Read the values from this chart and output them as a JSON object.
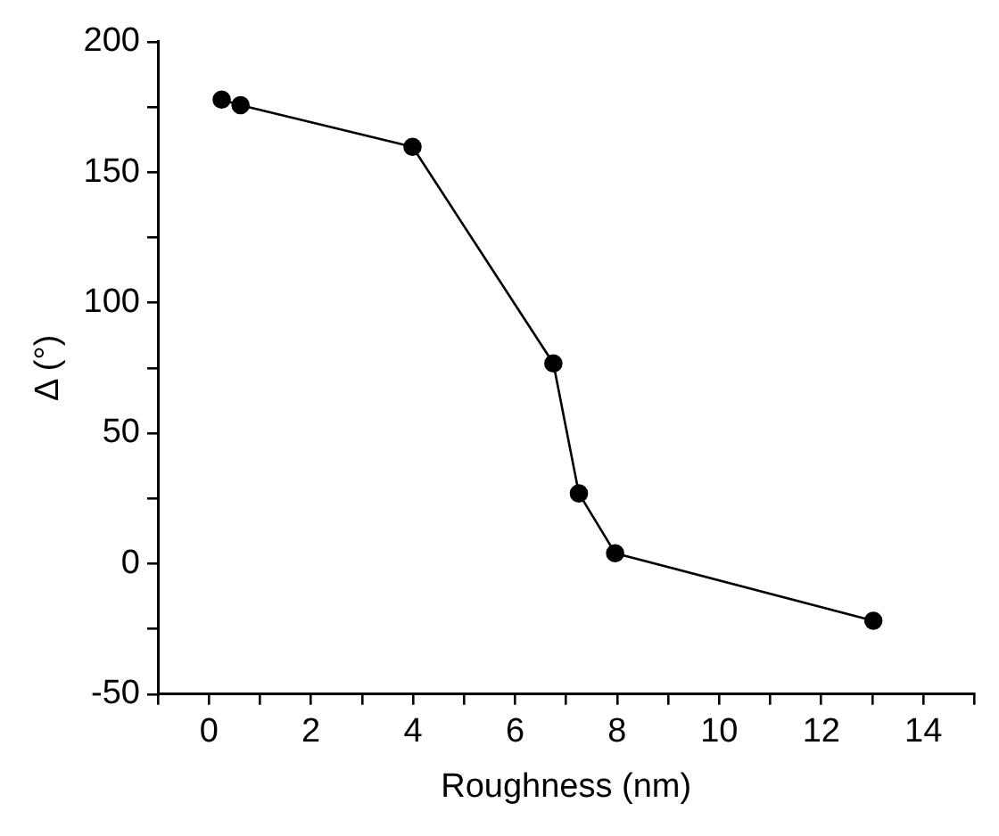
{
  "chart_data": {
    "type": "line",
    "xlabel": "Roughness (nm)",
    "ylabel": "Δ (°)",
    "x": [
      0.25,
      0.62,
      3.99,
      6.75,
      7.25,
      7.96,
      13.02
    ],
    "series": [
      {
        "color": "#000000",
        "values": [
          177.8,
          175.7,
          159.7,
          76.7,
          26.9,
          4,
          -21.9
        ]
      }
    ],
    "xlim": [
      -1,
      15
    ],
    "xticks": [
      {
        "value": -1,
        "label": null
      },
      0,
      {
        "value": 1,
        "label": null
      },
      2,
      {
        "value": 3,
        "label": null
      },
      4,
      {
        "value": 5,
        "label": null
      },
      6,
      {
        "value": 7,
        "label": null
      },
      8,
      {
        "value": 9,
        "label": null
      },
      10,
      {
        "value": 11,
        "label": null
      },
      12,
      {
        "value": 13,
        "label": null
      },
      14,
      {
        "value": 15,
        "label": null
      }
    ],
    "ylim": [
      -50,
      200
    ],
    "yticks": [
      -50,
      {
        "value": -25,
        "label": null
      },
      0,
      {
        "value": 25,
        "label": null
      },
      50,
      {
        "value": 75,
        "label": null
      },
      100,
      {
        "value": 125,
        "label": null
      },
      150,
      {
        "value": 175,
        "label": null
      },
      200
    ],
    "grid": false,
    "legend": false,
    "marker": "circle",
    "line_style": "solid"
  }
}
